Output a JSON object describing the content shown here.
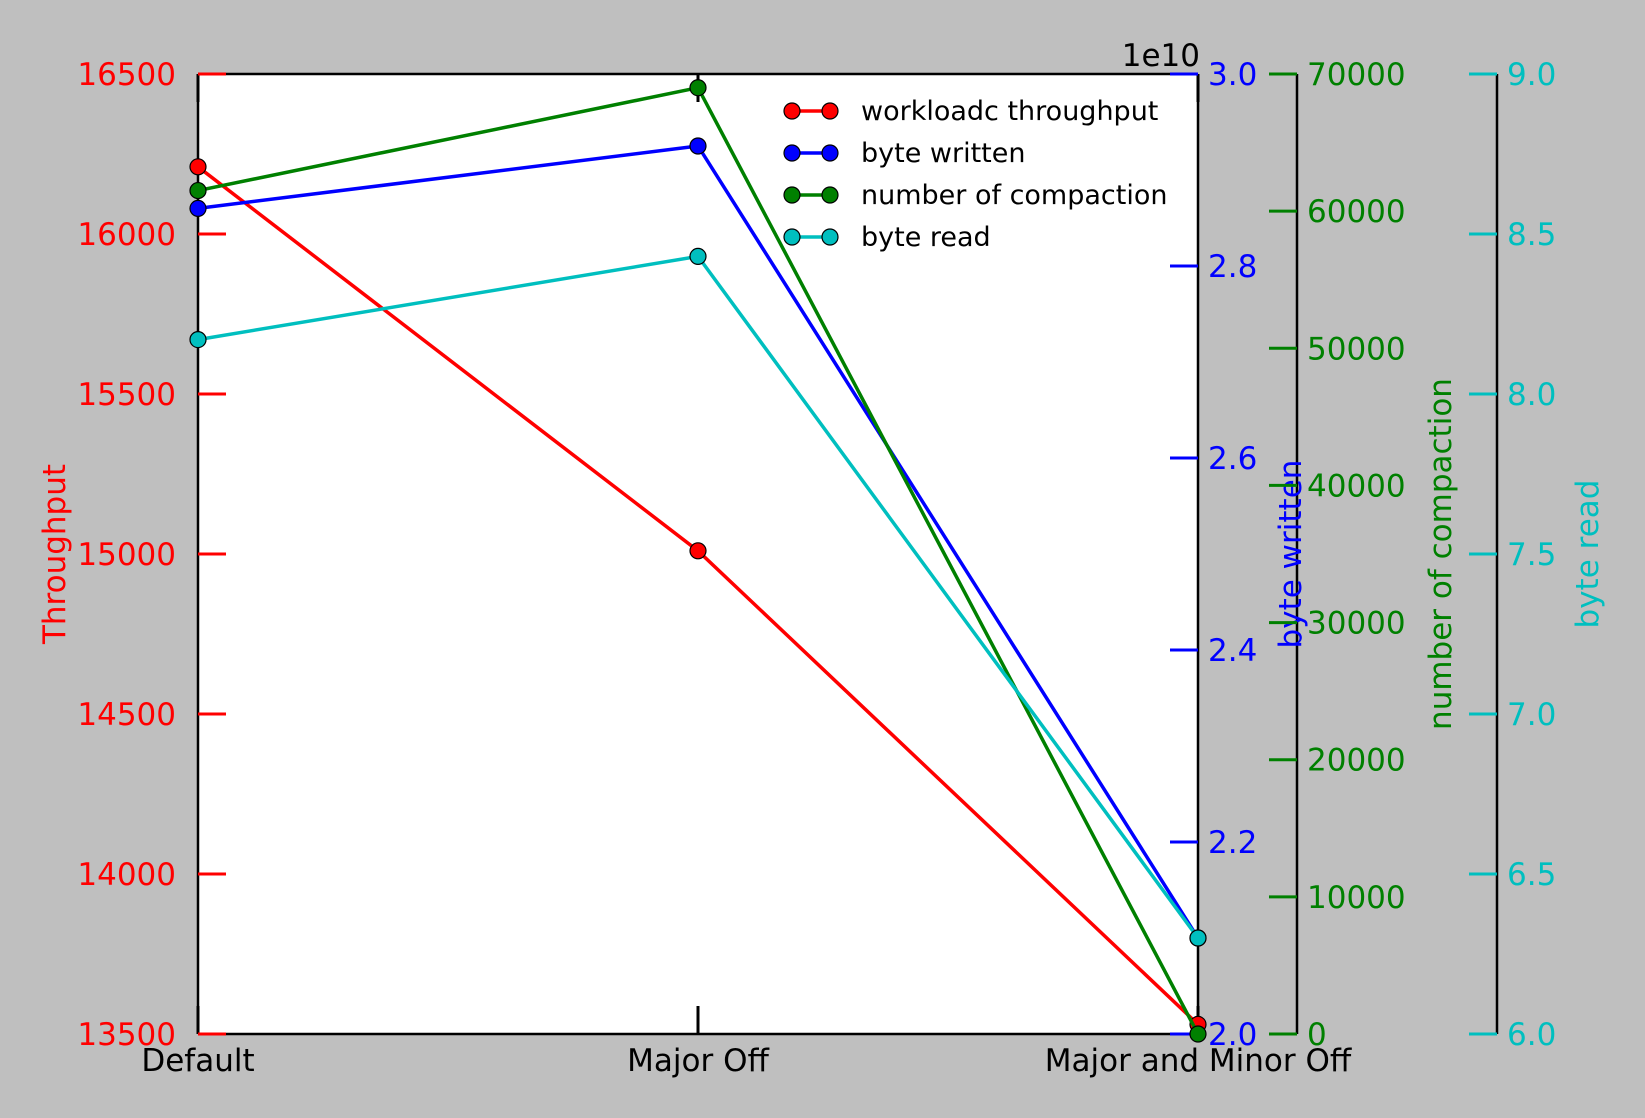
{
  "chart_data": {
    "type": "line",
    "categories": [
      "Default",
      "Major Off",
      "Major and Minor Off"
    ],
    "series": [
      {
        "name": "workloadc throughput",
        "axis": "throughput",
        "color": "#ff0000",
        "values": [
          16210,
          15010,
          13530
        ]
      },
      {
        "name": "byte written",
        "axis": "byte_written",
        "color": "#0000ff",
        "values": [
          2.86,
          2.925,
          2.1
        ]
      },
      {
        "name": "number of compaction",
        "axis": "compaction",
        "color": "#008000",
        "values": [
          61500,
          69000,
          0
        ]
      },
      {
        "name": "byte read",
        "axis": "byte_read",
        "color": "#00bfbf",
        "values": [
          8.17,
          8.43,
          6.3
        ]
      }
    ],
    "axes": {
      "throughput": {
        "label": "Throughput",
        "color": "#ff0000",
        "ylim": [
          13500,
          16500
        ],
        "ticks": [
          13500,
          14000,
          14500,
          15000,
          15500,
          16000,
          16500
        ],
        "tick_labels": [
          "13500",
          "14000",
          "14500",
          "15000",
          "15500",
          "16000",
          "16500"
        ]
      },
      "byte_written": {
        "label": "byte written",
        "color": "#0000ff",
        "ylim": [
          2.0,
          3.0
        ],
        "offset_text": "1e10",
        "ticks": [
          2.0,
          2.2,
          2.4,
          2.6,
          2.8,
          3.0
        ],
        "tick_labels": [
          "2.0",
          "2.2",
          "2.4",
          "2.6",
          "2.8",
          "3.0"
        ]
      },
      "compaction": {
        "label": "number of compaction",
        "color": "#008000",
        "ylim": [
          0,
          70000
        ],
        "ticks": [
          0,
          10000,
          20000,
          30000,
          40000,
          50000,
          60000,
          70000
        ],
        "tick_labels": [
          "0",
          "10000",
          "20000",
          "30000",
          "40000",
          "50000",
          "60000",
          "70000"
        ]
      },
      "byte_read": {
        "label": "byte read",
        "color": "#00bfbf",
        "ylim": [
          6.0,
          9.0
        ],
        "ticks": [
          6.0,
          6.5,
          7.0,
          7.5,
          8.0,
          8.5,
          9.0
        ],
        "tick_labels": [
          "6.0",
          "6.5",
          "7.0",
          "7.5",
          "8.0",
          "8.5",
          "9.0"
        ]
      }
    },
    "legend": {
      "position": "top-right",
      "entries": [
        "workloadc throughput",
        "byte written",
        "number of compaction",
        "byte read"
      ]
    },
    "grid": false,
    "xlabel": ""
  }
}
